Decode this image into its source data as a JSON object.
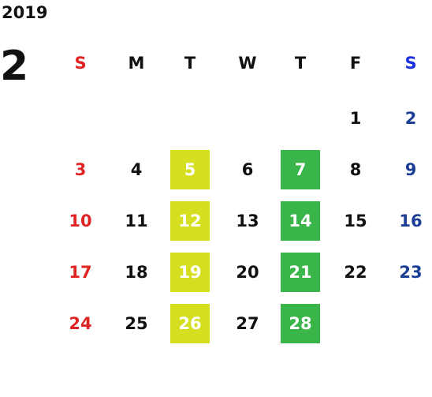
{
  "calendar": {
    "year": "2019",
    "month": "2",
    "weekdays": [
      "S",
      "M",
      "T",
      "W",
      "T",
      "F",
      "S"
    ],
    "weeks": [
      [
        null,
        null,
        null,
        null,
        null,
        1,
        2
      ],
      [
        3,
        4,
        5,
        6,
        7,
        8,
        9
      ],
      [
        10,
        11,
        12,
        13,
        14,
        15,
        16
      ],
      [
        17,
        18,
        19,
        20,
        21,
        22,
        23
      ],
      [
        24,
        25,
        26,
        27,
        28,
        null,
        null
      ]
    ]
  }
}
